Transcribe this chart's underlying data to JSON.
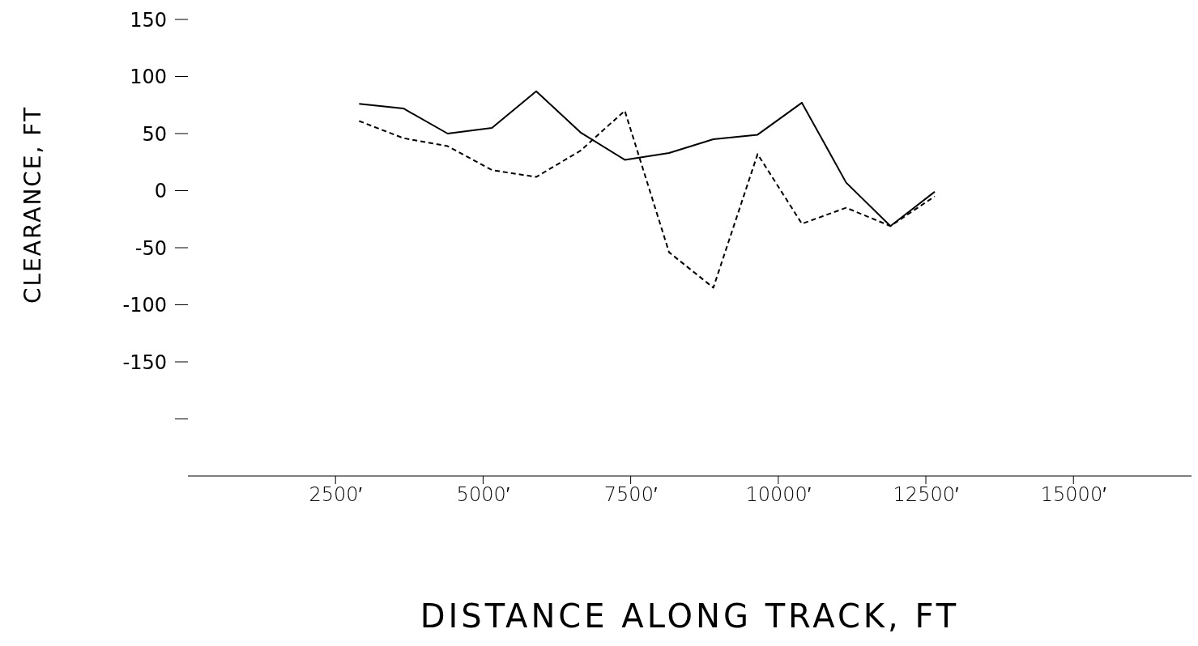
{
  "chart_data": {
    "type": "line",
    "xlabel": "DISTANCE ALONG TRACK, FT",
    "ylabel": "CLEARANCE, FT",
    "x": [
      2900,
      3650,
      4400,
      5150,
      5900,
      6650,
      7400,
      8150,
      8900,
      9650,
      10400,
      11150,
      11900,
      12650
    ],
    "series": [
      {
        "color": "#000000",
        "line_style": "solid",
        "values": [
          76,
          72,
          50,
          55,
          87,
          51,
          27,
          33,
          45,
          49,
          77,
          7,
          -31,
          -1
        ]
      },
      {
        "color": "#000000",
        "line_style": "dashed",
        "values": [
          61,
          46,
          39,
          18,
          12,
          35,
          70,
          -54,
          -85,
          32,
          -29,
          -15,
          -31,
          -5
        ]
      }
    ],
    "xlim": [
      0,
      17000
    ],
    "xticks": [
      {
        "value": 2500,
        "label": "2500′"
      },
      {
        "value": 5000,
        "label": "5000′"
      },
      {
        "value": 7500,
        "label": "7500′"
      },
      {
        "value": 10000,
        "label": "10000′"
      },
      {
        "value": 12500,
        "label": "12500′"
      },
      {
        "value": 15000,
        "label": "15000′"
      }
    ],
    "ylim": [
      -250,
      150
    ],
    "yticks": [
      {
        "value": -200,
        "label": null
      },
      -150,
      -100,
      -50,
      0,
      50,
      100,
      150
    ],
    "marker": "none"
  }
}
